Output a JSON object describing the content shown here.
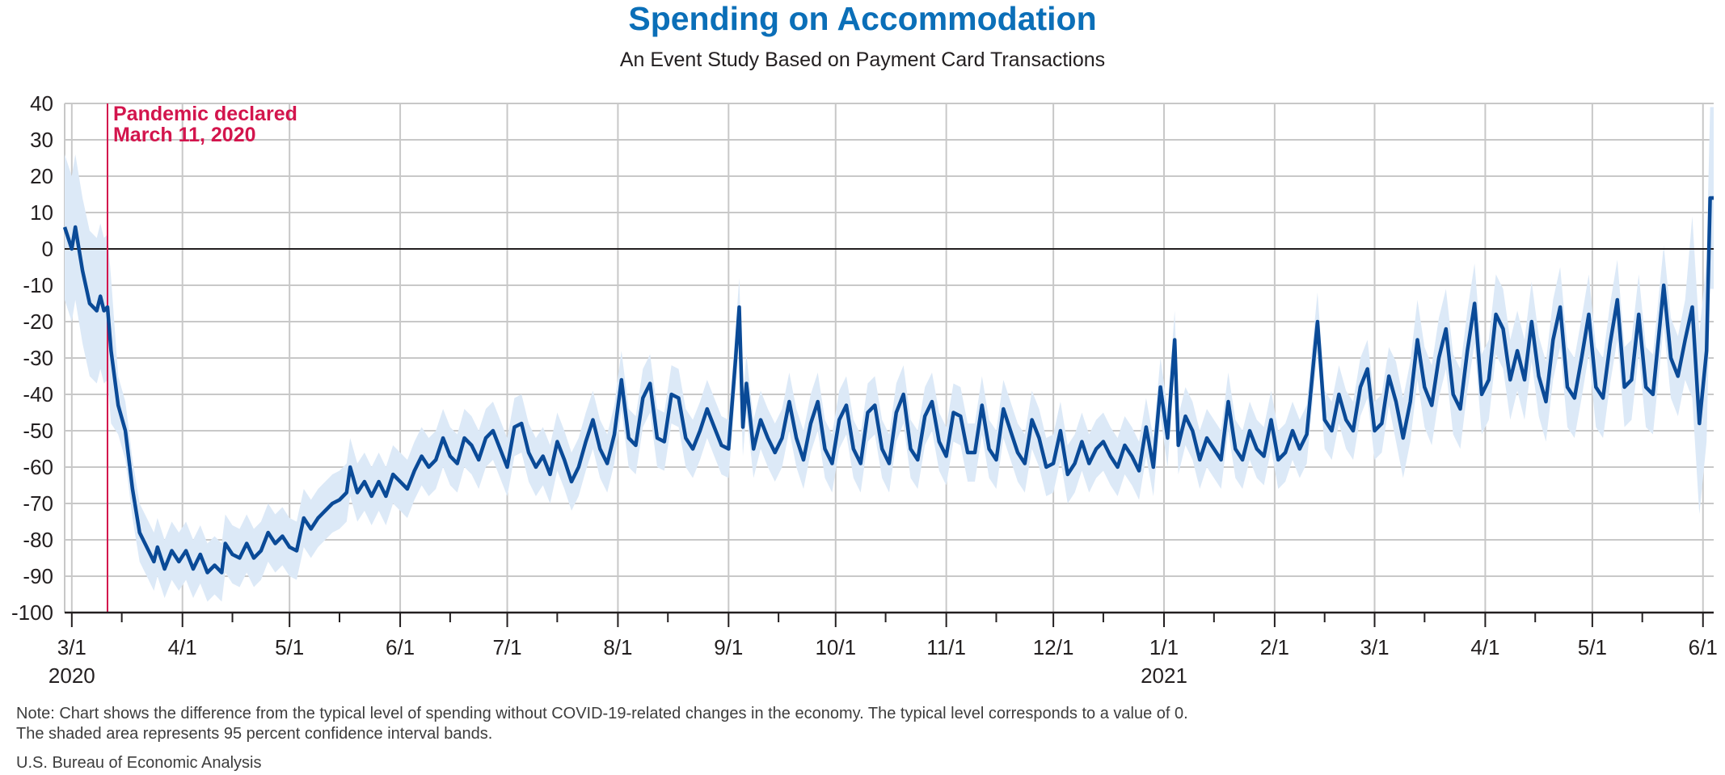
{
  "chart_data": {
    "type": "line",
    "title": "Spending on Accommodation",
    "subtitle": "An Event Study Based on Payment Card Transactions",
    "xlabel": "",
    "ylabel": "",
    "ylim": [
      -100,
      40
    ],
    "yticks": [
      40,
      30,
      20,
      10,
      0,
      -10,
      -20,
      -30,
      -40,
      -50,
      -60,
      -70,
      -80,
      -90,
      -100
    ],
    "x_range": [
      "2020-02-28",
      "2021-06-04"
    ],
    "x_tick_labels": [
      {
        "date": "2020-03-01",
        "label": "3/1",
        "sublabel": "2020"
      },
      {
        "date": "2020-04-01",
        "label": "4/1",
        "sublabel": ""
      },
      {
        "date": "2020-05-01",
        "label": "5/1",
        "sublabel": ""
      },
      {
        "date": "2020-06-01",
        "label": "6/1",
        "sublabel": ""
      },
      {
        "date": "2020-07-01",
        "label": "7/1",
        "sublabel": ""
      },
      {
        "date": "2020-08-01",
        "label": "8/1",
        "sublabel": ""
      },
      {
        "date": "2020-09-01",
        "label": "9/1",
        "sublabel": ""
      },
      {
        "date": "2020-10-01",
        "label": "10/1",
        "sublabel": ""
      },
      {
        "date": "2020-11-01",
        "label": "11/1",
        "sublabel": ""
      },
      {
        "date": "2020-12-01",
        "label": "12/1",
        "sublabel": ""
      },
      {
        "date": "2021-01-01",
        "label": "1/1",
        "sublabel": "2021"
      },
      {
        "date": "2021-02-01",
        "label": "2/1",
        "sublabel": ""
      },
      {
        "date": "2021-03-01",
        "label": "3/1",
        "sublabel": ""
      },
      {
        "date": "2021-04-01",
        "label": "4/1",
        "sublabel": ""
      },
      {
        "date": "2021-05-01",
        "label": "5/1",
        "sublabel": ""
      },
      {
        "date": "2021-06-01",
        "label": "6/1",
        "sublabel": ""
      }
    ],
    "minor_tick_dates": [
      "2020-03-15",
      "2020-04-15",
      "2020-05-15",
      "2020-06-15",
      "2020-07-15",
      "2020-08-15",
      "2020-09-15",
      "2020-10-15",
      "2020-11-15",
      "2020-12-15",
      "2021-01-15",
      "2021-02-15",
      "2021-03-15",
      "2021-04-15",
      "2021-05-15"
    ],
    "grid": true,
    "zero_line": true,
    "annotation": {
      "date": "2020-03-11",
      "line1": "Pandemic declared",
      "line2": "March 11, 2020",
      "color": "#d3154d"
    },
    "series": [
      {
        "color": "#0a4a97",
        "band_color": "#dce9f7",
        "points": [
          [
            "2020-02-28",
            6
          ],
          [
            "2020-03-01",
            0
          ],
          [
            "2020-03-02",
            6
          ],
          [
            "2020-03-04",
            -6
          ],
          [
            "2020-03-06",
            -15
          ],
          [
            "2020-03-08",
            -17
          ],
          [
            "2020-03-09",
            -13
          ],
          [
            "2020-03-10",
            -17
          ],
          [
            "2020-03-11",
            -16
          ],
          [
            "2020-03-12",
            -28
          ],
          [
            "2020-03-14",
            -43
          ],
          [
            "2020-03-16",
            -50
          ],
          [
            "2020-03-18",
            -66
          ],
          [
            "2020-03-20",
            -78
          ],
          [
            "2020-03-22",
            -82
          ],
          [
            "2020-03-24",
            -86
          ],
          [
            "2020-03-25",
            -82
          ],
          [
            "2020-03-27",
            -88
          ],
          [
            "2020-03-29",
            -83
          ],
          [
            "2020-03-31",
            -86
          ],
          [
            "2020-04-02",
            -83
          ],
          [
            "2020-04-04",
            -88
          ],
          [
            "2020-04-06",
            -84
          ],
          [
            "2020-04-08",
            -89
          ],
          [
            "2020-04-10",
            -87
          ],
          [
            "2020-04-12",
            -89
          ],
          [
            "2020-04-13",
            -81
          ],
          [
            "2020-04-15",
            -84
          ],
          [
            "2020-04-17",
            -85
          ],
          [
            "2020-04-19",
            -81
          ],
          [
            "2020-04-21",
            -85
          ],
          [
            "2020-04-23",
            -83
          ],
          [
            "2020-04-25",
            -78
          ],
          [
            "2020-04-27",
            -81
          ],
          [
            "2020-04-29",
            -79
          ],
          [
            "2020-05-01",
            -82
          ],
          [
            "2020-05-03",
            -83
          ],
          [
            "2020-05-05",
            -74
          ],
          [
            "2020-05-07",
            -77
          ],
          [
            "2020-05-09",
            -74
          ],
          [
            "2020-05-11",
            -72
          ],
          [
            "2020-05-13",
            -70
          ],
          [
            "2020-05-15",
            -69
          ],
          [
            "2020-05-17",
            -67
          ],
          [
            "2020-05-18",
            -60
          ],
          [
            "2020-05-20",
            -67
          ],
          [
            "2020-05-22",
            -64
          ],
          [
            "2020-05-24",
            -68
          ],
          [
            "2020-05-26",
            -64
          ],
          [
            "2020-05-28",
            -68
          ],
          [
            "2020-05-30",
            -62
          ],
          [
            "2020-06-01",
            -64
          ],
          [
            "2020-06-03",
            -66
          ],
          [
            "2020-06-05",
            -61
          ],
          [
            "2020-06-07",
            -57
          ],
          [
            "2020-06-09",
            -60
          ],
          [
            "2020-06-11",
            -58
          ],
          [
            "2020-06-13",
            -52
          ],
          [
            "2020-06-15",
            -57
          ],
          [
            "2020-06-17",
            -59
          ],
          [
            "2020-06-19",
            -52
          ],
          [
            "2020-06-21",
            -54
          ],
          [
            "2020-06-23",
            -58
          ],
          [
            "2020-06-25",
            -52
          ],
          [
            "2020-06-27",
            -50
          ],
          [
            "2020-06-29",
            -55
          ],
          [
            "2020-07-01",
            -60
          ],
          [
            "2020-07-03",
            -49
          ],
          [
            "2020-07-05",
            -48
          ],
          [
            "2020-07-07",
            -56
          ],
          [
            "2020-07-09",
            -60
          ],
          [
            "2020-07-11",
            -57
          ],
          [
            "2020-07-13",
            -62
          ],
          [
            "2020-07-15",
            -53
          ],
          [
            "2020-07-17",
            -58
          ],
          [
            "2020-07-19",
            -64
          ],
          [
            "2020-07-21",
            -60
          ],
          [
            "2020-07-23",
            -53
          ],
          [
            "2020-07-25",
            -47
          ],
          [
            "2020-07-27",
            -55
          ],
          [
            "2020-07-29",
            -59
          ],
          [
            "2020-07-31",
            -51
          ],
          [
            "2020-08-02",
            -36
          ],
          [
            "2020-08-04",
            -52
          ],
          [
            "2020-08-06",
            -54
          ],
          [
            "2020-08-08",
            -41
          ],
          [
            "2020-08-10",
            -37
          ],
          [
            "2020-08-12",
            -52
          ],
          [
            "2020-08-14",
            -53
          ],
          [
            "2020-08-16",
            -40
          ],
          [
            "2020-08-18",
            -41
          ],
          [
            "2020-08-20",
            -52
          ],
          [
            "2020-08-22",
            -55
          ],
          [
            "2020-08-24",
            -50
          ],
          [
            "2020-08-26",
            -44
          ],
          [
            "2020-08-28",
            -49
          ],
          [
            "2020-08-30",
            -54
          ],
          [
            "2020-09-01",
            -55
          ],
          [
            "2020-09-03",
            -30
          ],
          [
            "2020-09-04",
            -16
          ],
          [
            "2020-09-05",
            -49
          ],
          [
            "2020-09-06",
            -37
          ],
          [
            "2020-09-08",
            -55
          ],
          [
            "2020-09-10",
            -47
          ],
          [
            "2020-09-12",
            -52
          ],
          [
            "2020-09-14",
            -56
          ],
          [
            "2020-09-16",
            -52
          ],
          [
            "2020-09-18",
            -42
          ],
          [
            "2020-09-20",
            -52
          ],
          [
            "2020-09-22",
            -58
          ],
          [
            "2020-09-24",
            -48
          ],
          [
            "2020-09-26",
            -42
          ],
          [
            "2020-09-28",
            -55
          ],
          [
            "2020-09-30",
            -59
          ],
          [
            "2020-10-02",
            -47
          ],
          [
            "2020-10-04",
            -43
          ],
          [
            "2020-10-06",
            -55
          ],
          [
            "2020-10-08",
            -59
          ],
          [
            "2020-10-10",
            -45
          ],
          [
            "2020-10-12",
            -43
          ],
          [
            "2020-10-14",
            -55
          ],
          [
            "2020-10-16",
            -59
          ],
          [
            "2020-10-18",
            -45
          ],
          [
            "2020-10-20",
            -40
          ],
          [
            "2020-10-22",
            -55
          ],
          [
            "2020-10-24",
            -58
          ],
          [
            "2020-10-26",
            -46
          ],
          [
            "2020-10-28",
            -42
          ],
          [
            "2020-10-30",
            -53
          ],
          [
            "2020-11-01",
            -57
          ],
          [
            "2020-11-03",
            -45
          ],
          [
            "2020-11-05",
            -46
          ],
          [
            "2020-11-07",
            -56
          ],
          [
            "2020-11-09",
            -56
          ],
          [
            "2020-11-11",
            -43
          ],
          [
            "2020-11-13",
            -55
          ],
          [
            "2020-11-15",
            -58
          ],
          [
            "2020-11-17",
            -44
          ],
          [
            "2020-11-19",
            -50
          ],
          [
            "2020-11-21",
            -56
          ],
          [
            "2020-11-23",
            -59
          ],
          [
            "2020-11-25",
            -47
          ],
          [
            "2020-11-27",
            -52
          ],
          [
            "2020-11-29",
            -60
          ],
          [
            "2020-12-01",
            -59
          ],
          [
            "2020-12-03",
            -50
          ],
          [
            "2020-12-05",
            -62
          ],
          [
            "2020-12-07",
            -59
          ],
          [
            "2020-12-09",
            -53
          ],
          [
            "2020-12-11",
            -59
          ],
          [
            "2020-12-13",
            -55
          ],
          [
            "2020-12-15",
            -53
          ],
          [
            "2020-12-17",
            -57
          ],
          [
            "2020-12-19",
            -60
          ],
          [
            "2020-12-21",
            -54
          ],
          [
            "2020-12-23",
            -57
          ],
          [
            "2020-12-25",
            -61
          ],
          [
            "2020-12-27",
            -49
          ],
          [
            "2020-12-29",
            -60
          ],
          [
            "2020-12-31",
            -38
          ],
          [
            "2021-01-02",
            -52
          ],
          [
            "2021-01-04",
            -25
          ],
          [
            "2021-01-05",
            -54
          ],
          [
            "2021-01-07",
            -46
          ],
          [
            "2021-01-09",
            -50
          ],
          [
            "2021-01-11",
            -58
          ],
          [
            "2021-01-13",
            -52
          ],
          [
            "2021-01-15",
            -55
          ],
          [
            "2021-01-17",
            -58
          ],
          [
            "2021-01-19",
            -42
          ],
          [
            "2021-01-21",
            -55
          ],
          [
            "2021-01-23",
            -58
          ],
          [
            "2021-01-25",
            -50
          ],
          [
            "2021-01-27",
            -55
          ],
          [
            "2021-01-29",
            -57
          ],
          [
            "2021-01-31",
            -47
          ],
          [
            "2021-02-02",
            -58
          ],
          [
            "2021-02-04",
            -56
          ],
          [
            "2021-02-06",
            -50
          ],
          [
            "2021-02-08",
            -55
          ],
          [
            "2021-02-10",
            -51
          ],
          [
            "2021-02-12",
            -30
          ],
          [
            "2021-02-13",
            -20
          ],
          [
            "2021-02-15",
            -47
          ],
          [
            "2021-02-17",
            -50
          ],
          [
            "2021-02-19",
            -40
          ],
          [
            "2021-02-21",
            -47
          ],
          [
            "2021-02-23",
            -50
          ],
          [
            "2021-02-25",
            -38
          ],
          [
            "2021-02-27",
            -33
          ],
          [
            "2021-03-01",
            -50
          ],
          [
            "2021-03-03",
            -48
          ],
          [
            "2021-03-05",
            -35
          ],
          [
            "2021-03-07",
            -42
          ],
          [
            "2021-03-09",
            -52
          ],
          [
            "2021-03-11",
            -42
          ],
          [
            "2021-03-13",
            -25
          ],
          [
            "2021-03-15",
            -38
          ],
          [
            "2021-03-17",
            -43
          ],
          [
            "2021-03-19",
            -30
          ],
          [
            "2021-03-21",
            -22
          ],
          [
            "2021-03-23",
            -40
          ],
          [
            "2021-03-25",
            -44
          ],
          [
            "2021-03-27",
            -28
          ],
          [
            "2021-03-29",
            -15
          ],
          [
            "2021-03-31",
            -40
          ],
          [
            "2021-04-02",
            -36
          ],
          [
            "2021-04-04",
            -18
          ],
          [
            "2021-04-06",
            -22
          ],
          [
            "2021-04-08",
            -36
          ],
          [
            "2021-04-10",
            -28
          ],
          [
            "2021-04-12",
            -36
          ],
          [
            "2021-04-14",
            -20
          ],
          [
            "2021-04-16",
            -35
          ],
          [
            "2021-04-18",
            -42
          ],
          [
            "2021-04-20",
            -25
          ],
          [
            "2021-04-22",
            -16
          ],
          [
            "2021-04-24",
            -38
          ],
          [
            "2021-04-26",
            -41
          ],
          [
            "2021-04-28",
            -30
          ],
          [
            "2021-04-30",
            -18
          ],
          [
            "2021-05-02",
            -38
          ],
          [
            "2021-05-04",
            -41
          ],
          [
            "2021-05-06",
            -26
          ],
          [
            "2021-05-08",
            -14
          ],
          [
            "2021-05-10",
            -38
          ],
          [
            "2021-05-12",
            -36
          ],
          [
            "2021-05-14",
            -18
          ],
          [
            "2021-05-16",
            -38
          ],
          [
            "2021-05-18",
            -40
          ],
          [
            "2021-05-20",
            -20
          ],
          [
            "2021-05-21",
            -10
          ],
          [
            "2021-05-23",
            -30
          ],
          [
            "2021-05-25",
            -35
          ],
          [
            "2021-05-27",
            -25
          ],
          [
            "2021-05-29",
            -16
          ],
          [
            "2021-05-31",
            -48
          ],
          [
            "2021-06-02",
            -28
          ],
          [
            "2021-06-03",
            14
          ],
          [
            "2021-06-04",
            14
          ]
        ]
      }
    ]
  },
  "notes": {
    "line1": "Note: Chart shows the difference from the typical level of spending without COVID-19-related changes in the economy. The typical level corresponds to a value of 0.",
    "line2": "The shaded area represents 95 percent confidence interval bands.",
    "source": "U.S. Bureau of Economic Analysis"
  }
}
